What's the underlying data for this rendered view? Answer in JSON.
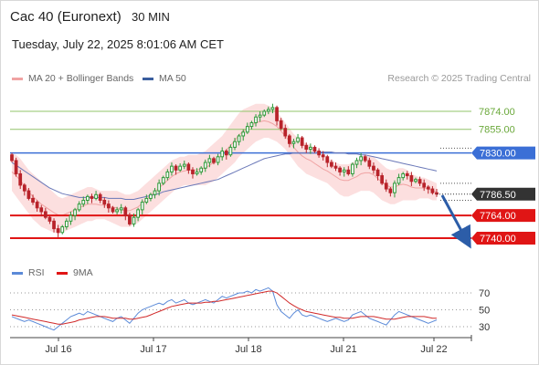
{
  "header": {
    "instrument": "Cac 40 (Euronext)",
    "interval": "30 MIN",
    "datetime": "Tuesday, July 22, 2025 8:01:06 AM CET"
  },
  "credit": "Research © 2025 Trading Central",
  "legend": {
    "bollinger": "MA 20 + Bollinger Bands",
    "ma50": "MA 50",
    "rsi": "RSI",
    "rsi_ma": "9MA"
  },
  "colors": {
    "up": "#2e9a3a",
    "down": "#b8232a",
    "band_fill": "#fcd9d9",
    "ma20": "#f0a3a3",
    "ma50": "#6a78b8",
    "resistance": "#92c46a",
    "pivot": "#3b6fd6",
    "support": "#e01515",
    "last": "#333333",
    "arrow": "#2c5da8",
    "rsi": "#5b8ad8",
    "rsi_ma": "#d12a2a"
  },
  "chart_data": {
    "type": "candlestick",
    "x_labels": [
      "Jul 16",
      "Jul 17",
      "Jul 18",
      "Jul 21",
      "Jul 22"
    ],
    "last_price": "7786.50",
    "levels": [
      {
        "label": "7874.00",
        "value": 7874,
        "kind": "resistance"
      },
      {
        "label": "7855.00",
        "value": 7855,
        "kind": "resistance"
      },
      {
        "label": "7830.00",
        "value": 7830,
        "kind": "pivot"
      },
      {
        "label": "7764.00",
        "value": 7764,
        "kind": "support"
      },
      {
        "label": "7740.00",
        "value": 7740,
        "kind": "support"
      }
    ],
    "closes": [
      7822,
      7808,
      7796,
      7790,
      7782,
      7778,
      7772,
      7768,
      7762,
      7758,
      7750,
      7746,
      7752,
      7758,
      7764,
      7770,
      7776,
      7780,
      7784,
      7782,
      7786,
      7780,
      7776,
      7772,
      7768,
      7770,
      7772,
      7764,
      7755,
      7762,
      7770,
      7778,
      7782,
      7786,
      7790,
      7798,
      7804,
      7810,
      7816,
      7812,
      7816,
      7818,
      7812,
      7808,
      7810,
      7814,
      7820,
      7824,
      7820,
      7826,
      7832,
      7828,
      7836,
      7842,
      7848,
      7852,
      7858,
      7862,
      7868,
      7870,
      7874,
      7876,
      7878,
      7864,
      7856,
      7848,
      7840,
      7842,
      7846,
      7838,
      7834,
      7836,
      7832,
      7828,
      7826,
      7820,
      7816,
      7814,
      7810,
      7812,
      7808,
      7818,
      7822,
      7826,
      7822,
      7816,
      7812,
      7806,
      7798,
      7792,
      7788,
      7798,
      7804,
      7808,
      7806,
      7800,
      7802,
      7798,
      7794,
      7792,
      7788,
      7786.5
    ],
    "bb_upper": [
      7830,
      7828,
      7824,
      7818,
      7812,
      7808,
      7804,
      7800,
      7796,
      7792,
      7788,
      7784,
      7782,
      7784,
      7786,
      7788,
      7790,
      7792,
      7794,
      7794,
      7792,
      7790,
      7790,
      7790,
      7790,
      7790,
      7788,
      7786,
      7786,
      7788,
      7790,
      7794,
      7798,
      7802,
      7806,
      7810,
      7814,
      7818,
      7822,
      7824,
      7826,
      7826,
      7828,
      7828,
      7828,
      7830,
      7832,
      7836,
      7840,
      7844,
      7848,
      7854,
      7860,
      7866,
      7872,
      7876,
      7878,
      7880,
      7882,
      7882,
      7882,
      7880,
      7878,
      7874,
      7868,
      7862,
      7856,
      7850,
      7846,
      7842,
      7840,
      7838,
      7834,
      7830,
      7826,
      7824,
      7822,
      7820,
      7818,
      7818,
      7818,
      7820,
      7822,
      7826,
      7828,
      7828,
      7826,
      7822,
      7818,
      7814,
      7812,
      7812,
      7814,
      7814,
      7812,
      7808,
      7806,
      7804,
      7804,
      7802,
      7800,
      7798
    ],
    "bb_lower": [
      7790,
      7784,
      7778,
      7772,
      7766,
      7760,
      7756,
      7752,
      7750,
      7748,
      7746,
      7745,
      7746,
      7748,
      7750,
      7752,
      7754,
      7756,
      7758,
      7758,
      7760,
      7760,
      7760,
      7758,
      7756,
      7754,
      7752,
      7752,
      7752,
      7754,
      7756,
      7760,
      7764,
      7768,
      7772,
      7776,
      7780,
      7784,
      7788,
      7792,
      7794,
      7796,
      7796,
      7796,
      7796,
      7796,
      7796,
      7798,
      7800,
      7804,
      7808,
      7812,
      7816,
      7820,
      7826,
      7830,
      7834,
      7838,
      7842,
      7844,
      7846,
      7846,
      7844,
      7842,
      7838,
      7834,
      7828,
      7822,
      7816,
      7812,
      7808,
      7806,
      7804,
      7802,
      7800,
      7798,
      7794,
      7790,
      7786,
      7784,
      7784,
      7786,
      7788,
      7790,
      7790,
      7790,
      7788,
      7784,
      7780,
      7778,
      7776,
      7776,
      7778,
      7780,
      7780,
      7780,
      7780,
      7782,
      7782,
      7782,
      7780,
      7780
    ],
    "ma50": [
      7820,
      7817,
      7814,
      7811,
      7808,
      7805,
      7802,
      7799,
      7796,
      7793,
      7791,
      7789,
      7787,
      7786,
      7785,
      7784,
      7783,
      7783,
      7783,
      7783,
      7783,
      7783,
      7783,
      7782,
      7782,
      7782,
      7782,
      7781,
      7781,
      7781,
      7782,
      7783,
      7784,
      7785,
      7786,
      7787,
      7789,
      7790,
      7791,
      7792,
      7793,
      7794,
      7795,
      7796,
      7797,
      7798,
      7799,
      7800,
      7801,
      7802,
      7804,
      7806,
      7808,
      7810,
      7812,
      7814,
      7816,
      7818,
      7820,
      7822,
      7824,
      7825,
      7826,
      7827,
      7828,
      7829,
      7829,
      7830,
      7830,
      7830,
      7830,
      7830,
      7830,
      7831,
      7831,
      7831,
      7831,
      7830,
      7830,
      7830,
      7829,
      7829,
      7829,
      7828,
      7828,
      7827,
      7826,
      7825,
      7824,
      7823,
      7822,
      7821,
      7820,
      7819,
      7818,
      7817,
      7816,
      7815,
      7814,
      7813,
      7812,
      7811
    ],
    "rsi": [
      42,
      40,
      38,
      36,
      38,
      36,
      34,
      32,
      30,
      28,
      26,
      30,
      34,
      38,
      42,
      44,
      46,
      44,
      48,
      46,
      44,
      42,
      40,
      38,
      36,
      40,
      42,
      38,
      34,
      40,
      46,
      50,
      52,
      54,
      56,
      58,
      56,
      60,
      62,
      58,
      60,
      62,
      58,
      56,
      58,
      60,
      62,
      60,
      58,
      62,
      66,
      64,
      66,
      68,
      70,
      70,
      72,
      70,
      74,
      72,
      74,
      76,
      72,
      56,
      48,
      44,
      40,
      46,
      50,
      44,
      42,
      44,
      42,
      40,
      38,
      36,
      38,
      40,
      38,
      36,
      38,
      44,
      46,
      48,
      44,
      40,
      38,
      36,
      34,
      32,
      38,
      44,
      48,
      46,
      44,
      42,
      40,
      38,
      36,
      34,
      36,
      38
    ],
    "rsi_ma": [
      44,
      43,
      42,
      41,
      40,
      39,
      38,
      37,
      36,
      35,
      34,
      33,
      33,
      34,
      35,
      36,
      38,
      39,
      40,
      41,
      42,
      42,
      42,
      41,
      40,
      40,
      40,
      40,
      39,
      39,
      40,
      41,
      42,
      44,
      46,
      48,
      50,
      52,
      54,
      55,
      56,
      57,
      58,
      58,
      58,
      58,
      59,
      59,
      60,
      60,
      61,
      62,
      63,
      64,
      65,
      66,
      67,
      68,
      69,
      70,
      71,
      72,
      72,
      70,
      66,
      62,
      58,
      55,
      52,
      50,
      48,
      47,
      46,
      45,
      44,
      43,
      42,
      41,
      41,
      40,
      40,
      40,
      41,
      42,
      42,
      42,
      42,
      41,
      40,
      39,
      39,
      39,
      40,
      41,
      42,
      42,
      42,
      42,
      42,
      41,
      40,
      40
    ],
    "rsi_ticks": [
      70,
      50,
      30
    ],
    "rsi_labels": [
      "70",
      "50",
      "30"
    ],
    "projection": "down"
  }
}
